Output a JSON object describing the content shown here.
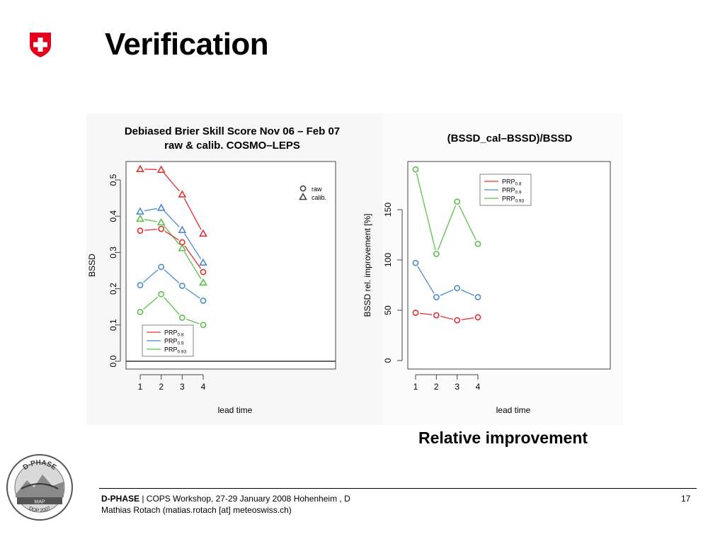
{
  "slide": {
    "title": "Verification",
    "caption": "Relative improvement",
    "footer_bold": "D-PHASE",
    "footer_rest": " | COPS Workshop, 27-29 January 2008 Hohenheim , D",
    "footer_line2": "Mathias Rotach (matias.rotach [at] meteoswiss.ch)",
    "page_number": "17",
    "logo_text_top": "D-PHASE",
    "logo_text_bottom": "DOP 2007",
    "logo_text_band": "MAP",
    "colors": {
      "red": "#e03030",
      "blue": "#4a8bd0",
      "green": "#5cbf4a"
    }
  },
  "chart_data": [
    {
      "type": "line",
      "title": "Debiased Brier Skill Score Nov 06 – Feb 07",
      "subtitle": "raw & calib. COSMO–LEPS",
      "xlabel": "lead time",
      "ylabel": "BSSD",
      "x": [
        1,
        2,
        3,
        4
      ],
      "xticks": [
        "1",
        "2",
        "3",
        "4"
      ],
      "yticks": [
        "0.0",
        "0.1",
        "0.2",
        "0.3",
        "0.4",
        "0.5"
      ],
      "ylim": [
        0,
        0.55
      ],
      "symbol_legend": [
        {
          "symbol": "circle",
          "label": "raw"
        },
        {
          "symbol": "triangle",
          "label": "calib."
        }
      ],
      "legend_placement": "bottom-left",
      "series": [
        {
          "name": "PRP",
          "sub": "0.8",
          "color": "red",
          "symbol": "triangle",
          "values": [
            0.53,
            0.528,
            0.46,
            0.352
          ]
        },
        {
          "name": "PRP",
          "sub": "0.9",
          "color": "blue",
          "symbol": "triangle",
          "values": [
            0.413,
            0.423,
            0.362,
            0.272
          ]
        },
        {
          "name": "PRP",
          "sub": "0.93",
          "color": "green",
          "symbol": "triangle",
          "values": [
            0.393,
            0.383,
            0.312,
            0.217
          ]
        },
        {
          "name": "PRP",
          "sub": "0.8",
          "color": "red",
          "symbol": "circle",
          "values": [
            0.36,
            0.365,
            0.328,
            0.246
          ]
        },
        {
          "name": "PRP",
          "sub": "0.9",
          "color": "blue",
          "symbol": "circle",
          "values": [
            0.21,
            0.26,
            0.208,
            0.167
          ]
        },
        {
          "name": "PRP",
          "sub": "0.93",
          "color": "green",
          "symbol": "circle",
          "values": [
            0.136,
            0.185,
            0.12,
            0.1
          ]
        }
      ]
    },
    {
      "type": "line",
      "title": "(BSSD_cal–BSSD)/BSSD",
      "xlabel": "lead time",
      "ylabel": "BSSD rel. improvement [%]",
      "x": [
        1,
        2,
        3,
        4
      ],
      "xticks": [
        "1",
        "2",
        "3",
        "4"
      ],
      "yticks": [
        "0",
        "50",
        "100",
        "150"
      ],
      "ylim": [
        -8,
        198
      ],
      "legend_placement": "top-right",
      "series": [
        {
          "name": "PRP",
          "sub": "0.8",
          "color": "red",
          "values": [
            47.5,
            45,
            40,
            43
          ]
        },
        {
          "name": "PRP",
          "sub": "0.9",
          "color": "blue",
          "values": [
            97,
            63,
            72,
            63
          ]
        },
        {
          "name": "PRP",
          "sub": "0.93",
          "color": "green",
          "values": [
            190,
            106,
            158,
            116
          ]
        }
      ]
    }
  ]
}
